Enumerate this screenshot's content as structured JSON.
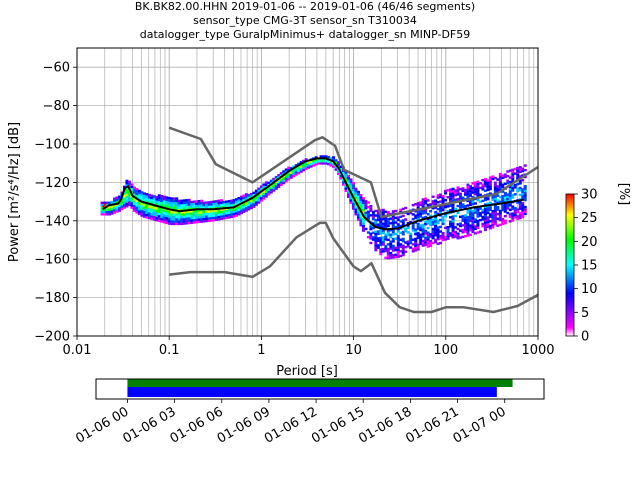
{
  "chart_data": [
    {
      "type": "heatmap",
      "title": [
        "BK.BK82.00.HHN   2019-01-06 -- 2019-01-06  (46/46 segments)",
        "sensor_type CMG-3T sensor_sn T310034",
        "datalogger_type GuralpMinimus+ datalogger_sn MINP-DF59"
      ],
      "xlabel": "Period [s]",
      "ylabel": "Power [m²/s⁴/Hz] [dB]",
      "xscale": "log",
      "xlim": [
        0.01,
        1000
      ],
      "ylim": [
        -200,
        -50
      ],
      "x_ticks": [
        0.01,
        0.1,
        1,
        10,
        100,
        1000
      ],
      "x_tick_labels": [
        "0.01",
        "0.1",
        "1",
        "10",
        "100",
        "1000"
      ],
      "y_ticks": [
        -200,
        -180,
        -160,
        -140,
        -120,
        -100,
        -80,
        -60
      ],
      "grid": true,
      "colorbar": {
        "label": "[%]",
        "range": [
          0,
          30
        ],
        "ticks": [
          0,
          5,
          10,
          15,
          20,
          25,
          30
        ],
        "colormap": [
          "#ffffff",
          "#ff00ff",
          "#0000ff",
          "#00ffff",
          "#00ff00",
          "#ffff00",
          "#ff0000"
        ]
      },
      "series": [
        {
          "name": "",
          "role": "high-noise-model",
          "color": "#666666",
          "x": [
            0.1,
            0.22,
            0.32,
            0.8,
            3.8,
            4.6,
            6.3,
            7.9,
            15.4,
            20,
            354.8,
            1000
          ],
          "y": [
            -91.5,
            -97.4,
            -110.5,
            -120.0,
            -98.0,
            -96.5,
            -101.0,
            -113.5,
            -120.0,
            -138.0,
            -126.0,
            -112.0
          ]
        },
        {
          "name": "",
          "role": "low-noise-model",
          "color": "#666666",
          "x": [
            0.1,
            0.17,
            0.4,
            0.8,
            1.24,
            2.4,
            4.3,
            5.0,
            6.0,
            10.0,
            12.0,
            15.6,
            21.9,
            31.6,
            45.0,
            70.0,
            101.0,
            154.0,
            328.0,
            600.0,
            1000.0
          ],
          "y": [
            -168.0,
            -166.7,
            -166.7,
            -169.2,
            -163.7,
            -148.6,
            -141.1,
            -141.1,
            -149.0,
            -163.8,
            -166.2,
            -162.1,
            -177.5,
            -185.0,
            -187.5,
            -187.5,
            -185.0,
            -185.0,
            -187.5,
            -184.4,
            -178.6
          ]
        },
        {
          "name": "",
          "role": "mode",
          "color": "#000000",
          "x": [
            0.019,
            0.022,
            0.028,
            0.03,
            0.033,
            0.036,
            0.04,
            0.05,
            0.07,
            0.1,
            0.13,
            0.2,
            0.3,
            0.5,
            0.8,
            1.2,
            2.0,
            3.0,
            4.0,
            5.0,
            6.0,
            7.0,
            8.0,
            10.0,
            13.0,
            17.0,
            22.0,
            30.0,
            50.0,
            100.0,
            200.0,
            400.0,
            700.0
          ],
          "y": [
            -134,
            -132,
            -131,
            -129,
            -123,
            -122,
            -127,
            -130,
            -132,
            -134,
            -135,
            -134,
            -134,
            -133,
            -128,
            -122,
            -114,
            -109,
            -107.5,
            -107.5,
            -109,
            -113,
            -119,
            -128,
            -138,
            -143,
            -144.5,
            -144,
            -140,
            -136,
            -133,
            -131,
            -129
          ]
        }
      ],
      "density_band": {
        "x": [
          0.018,
          0.022,
          0.028,
          0.03,
          0.033,
          0.036,
          0.04,
          0.05,
          0.07,
          0.1,
          0.13,
          0.2,
          0.3,
          0.5,
          0.8,
          1.2,
          2.0,
          3.0,
          4.0,
          5.0,
          6.0,
          7.0,
          8.0,
          10.0,
          13.0,
          17.0,
          22.0,
          30.0,
          50.0,
          100.0,
          200.0,
          400.0,
          700.0
        ],
        "upper": [
          -130,
          -129,
          -126,
          -124,
          -118,
          -118,
          -122,
          -124,
          -126,
          -127,
          -128,
          -129,
          -129,
          -128,
          -124,
          -118,
          -111,
          -107,
          -106,
          -105.5,
          -106.5,
          -110,
          -114,
          -121,
          -129,
          -132,
          -134,
          -133,
          -129,
          -123,
          -119,
          -114,
          -110
        ],
        "lower": [
          -136,
          -136,
          -134,
          -133,
          -132,
          -131,
          -134,
          -137,
          -139,
          -141,
          -141,
          -140,
          -139,
          -137,
          -132,
          -125,
          -117,
          -112,
          -109.5,
          -109.5,
          -111.5,
          -117,
          -124,
          -135,
          -147,
          -155,
          -159,
          -158,
          -154,
          -150,
          -146,
          -141,
          -137
        ]
      }
    },
    {
      "type": "timeline",
      "xlim": [
        "2019-01-05 22:00",
        "2019-01-07 02:30"
      ],
      "x_tick_labels": [
        "01-06 00",
        "01-06 03",
        "01-06 06",
        "01-06 09",
        "01-06 12",
        "01-06 15",
        "01-06 18",
        "01-06 21",
        "01-07 00"
      ],
      "bars": [
        {
          "color": "#008000",
          "start": "2019-01-06 00:00",
          "end": "2019-01-07 00:30"
        },
        {
          "color": "#0000ff",
          "start": "2019-01-06 00:00",
          "end": "2019-01-06 23:30"
        }
      ]
    }
  ]
}
